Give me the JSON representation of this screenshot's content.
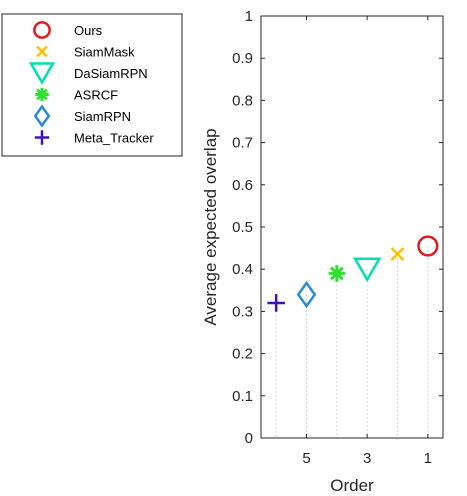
{
  "chart_data": {
    "type": "scatter",
    "xlabel": "Order",
    "ylabel": "Average expected overlap",
    "xlim": [
      6.5,
      0.5
    ],
    "ylim": [
      0,
      1
    ],
    "x_ticks": [
      5,
      3,
      1
    ],
    "y_ticks": [
      0,
      0.1,
      0.2,
      0.3,
      0.4,
      0.5,
      0.6,
      0.7,
      0.8,
      0.9,
      1
    ],
    "grid": "vertical dotted lines from markers to x-axis",
    "legend_position": "left, outside plot",
    "series": [
      {
        "name": "Ours",
        "x": 1,
        "y": 0.455,
        "marker": "circle",
        "color": "#e31a1c"
      },
      {
        "name": "SiamMask",
        "x": 2,
        "y": 0.436,
        "marker": "x",
        "color": "#ffc000"
      },
      {
        "name": "DaSiamRPN",
        "x": 3,
        "y": 0.4,
        "marker": "triangle-down",
        "color": "#00e0b0"
      },
      {
        "name": "ASRCF",
        "x": 4,
        "y": 0.39,
        "marker": "asterisk",
        "color": "#30e030"
      },
      {
        "name": "SiamRPN",
        "x": 5,
        "y": 0.34,
        "marker": "diamond",
        "color": "#2a8ae0"
      },
      {
        "name": "Meta_Tracker",
        "x": 6,
        "y": 0.32,
        "marker": "plus",
        "color": "#4010c0"
      }
    ]
  }
}
